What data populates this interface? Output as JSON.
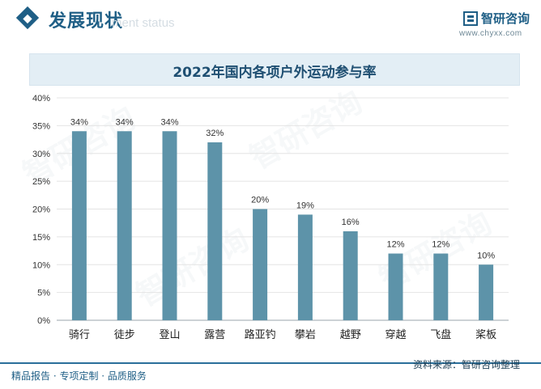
{
  "header": {
    "title": "发展现状",
    "subtitle_en": "ment status",
    "brand": "智研咨询",
    "url": "www.chyxx.com"
  },
  "footer": {
    "left_text": "精品报告 · 专项定制 · 品质服务",
    "source": "资料来源：智研咨询整理"
  },
  "colors": {
    "bar": "#5d93a9",
    "accent": "#1f5f86",
    "grid": "#e4e4e4"
  },
  "chart_data": {
    "type": "bar",
    "title": "2022年国内各项户外运动参与率",
    "categories": [
      "骑行",
      "徒步",
      "登山",
      "露营",
      "路亚钓",
      "攀岩",
      "越野",
      "穿越",
      "飞盘",
      "桨板"
    ],
    "values": [
      34,
      34,
      34,
      32,
      20,
      19,
      16,
      12,
      12,
      10
    ],
    "value_labels": [
      "34%",
      "34%",
      "34%",
      "32%",
      "20%",
      "19%",
      "16%",
      "12%",
      "12%",
      "10%"
    ],
    "y_ticks": [
      "0%",
      "5%",
      "10%",
      "15%",
      "20%",
      "25%",
      "30%",
      "35%",
      "40%"
    ],
    "ylim": [
      0,
      40
    ],
    "xlabel": "",
    "ylabel": "",
    "grid": true
  }
}
